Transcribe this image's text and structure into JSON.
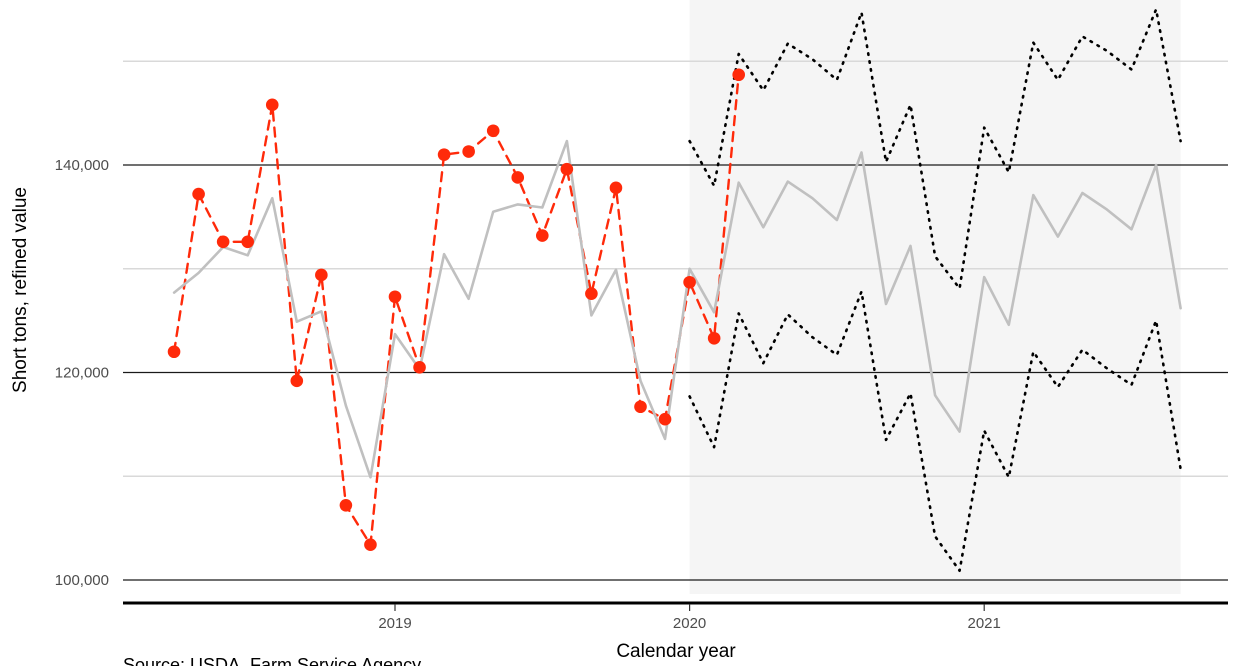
{
  "chart_data": {
    "type": "line",
    "title": "",
    "xlabel": "Calendar year",
    "ylabel": "Short tons, refined value",
    "caption": "Source: USDA, Farm Service Agency",
    "x_ticks": [
      "2019",
      "2020",
      "2021"
    ],
    "y_ticks": [
      "100,000",
      "120,000",
      "140,000"
    ],
    "xlim": [
      "2018-03",
      "2021-09"
    ],
    "ylim": [
      100000,
      152000
    ],
    "grid": true,
    "legend": "none",
    "forecast_start": "2020-01",
    "colors": {
      "actual": "#ff2a0a",
      "fitted": "#c0c0c0",
      "interval": "#000000",
      "band_fill": "#f5f5f5"
    },
    "series": [
      {
        "style": "dashed-with-points",
        "x": [
          "2018-04",
          "2018-05",
          "2018-06",
          "2018-07",
          "2018-08",
          "2018-09",
          "2018-10",
          "2018-11",
          "2018-12",
          "2019-01",
          "2019-02",
          "2019-03",
          "2019-04",
          "2019-05",
          "2019-06",
          "2019-07",
          "2019-08",
          "2019-09",
          "2019-10",
          "2019-11",
          "2019-12",
          "2020-01",
          "2020-02",
          "2020-03"
        ],
        "values": [
          122000,
          137200,
          132600,
          132600,
          145800,
          119200,
          129400,
          107200,
          103400,
          127300,
          120500,
          141000,
          141300,
          143300,
          138800,
          133200,
          139600,
          127600,
          137800,
          116700,
          115500,
          128700,
          123300,
          148700
        ]
      },
      {
        "style": "solid",
        "x": [
          "2018-04",
          "2018-05",
          "2018-06",
          "2018-07",
          "2018-08",
          "2018-09",
          "2018-10",
          "2018-11",
          "2018-12",
          "2019-01",
          "2019-02",
          "2019-03",
          "2019-04",
          "2019-05",
          "2019-06",
          "2019-07",
          "2019-08",
          "2019-09",
          "2019-10",
          "2019-11",
          "2019-12",
          "2020-01",
          "2020-02",
          "2020-03",
          "2020-04",
          "2020-05",
          "2020-06",
          "2020-07",
          "2020-08",
          "2020-09",
          "2020-10",
          "2020-11",
          "2020-12",
          "2021-01",
          "2021-02",
          "2021-03",
          "2021-04",
          "2021-05",
          "2021-06",
          "2021-07",
          "2021-08",
          "2021-09"
        ],
        "values": [
          127700,
          129600,
          132100,
          131300,
          136800,
          124900,
          125900,
          116800,
          109900,
          123700,
          120300,
          131400,
          127100,
          135500,
          136200,
          135900,
          142300,
          125500,
          129900,
          119200,
          113600,
          130000,
          125800,
          138300,
          134000,
          138400,
          136800,
          134700,
          141200,
          126600,
          132200,
          117800,
          114300,
          129200,
          124600,
          137100,
          133100,
          137300,
          135700,
          133800,
          140000,
          126200
        ]
      },
      {
        "style": "dotted",
        "x": [
          "2020-01",
          "2020-02",
          "2020-03",
          "2020-04",
          "2020-05",
          "2020-06",
          "2020-07",
          "2020-08",
          "2020-09",
          "2020-10",
          "2020-11",
          "2020-12",
          "2021-01",
          "2021-02",
          "2021-03",
          "2021-04",
          "2021-05",
          "2021-06",
          "2021-07",
          "2021-08",
          "2021-09"
        ],
        "values": [
          142300,
          138000,
          150700,
          147200,
          151700,
          150200,
          148200,
          154700,
          140300,
          145800,
          131200,
          128100,
          143600,
          139300,
          151800,
          148200,
          152400,
          151000,
          149200,
          155000,
          142300
        ]
      },
      {
        "style": "dotted",
        "x": [
          "2020-01",
          "2020-02",
          "2020-03",
          "2020-04",
          "2020-05",
          "2020-06",
          "2020-07",
          "2020-08",
          "2020-09",
          "2020-10",
          "2020-11",
          "2020-12",
          "2021-01",
          "2021-02",
          "2021-03",
          "2021-04",
          "2021-05",
          "2021-06",
          "2021-07",
          "2021-08",
          "2021-09"
        ],
        "values": [
          117700,
          112800,
          125700,
          120900,
          125600,
          123400,
          121700,
          127800,
          113500,
          118000,
          104200,
          100900,
          114400,
          109900,
          122000,
          118600,
          122200,
          120400,
          118800,
          125000,
          110700
        ]
      }
    ]
  }
}
